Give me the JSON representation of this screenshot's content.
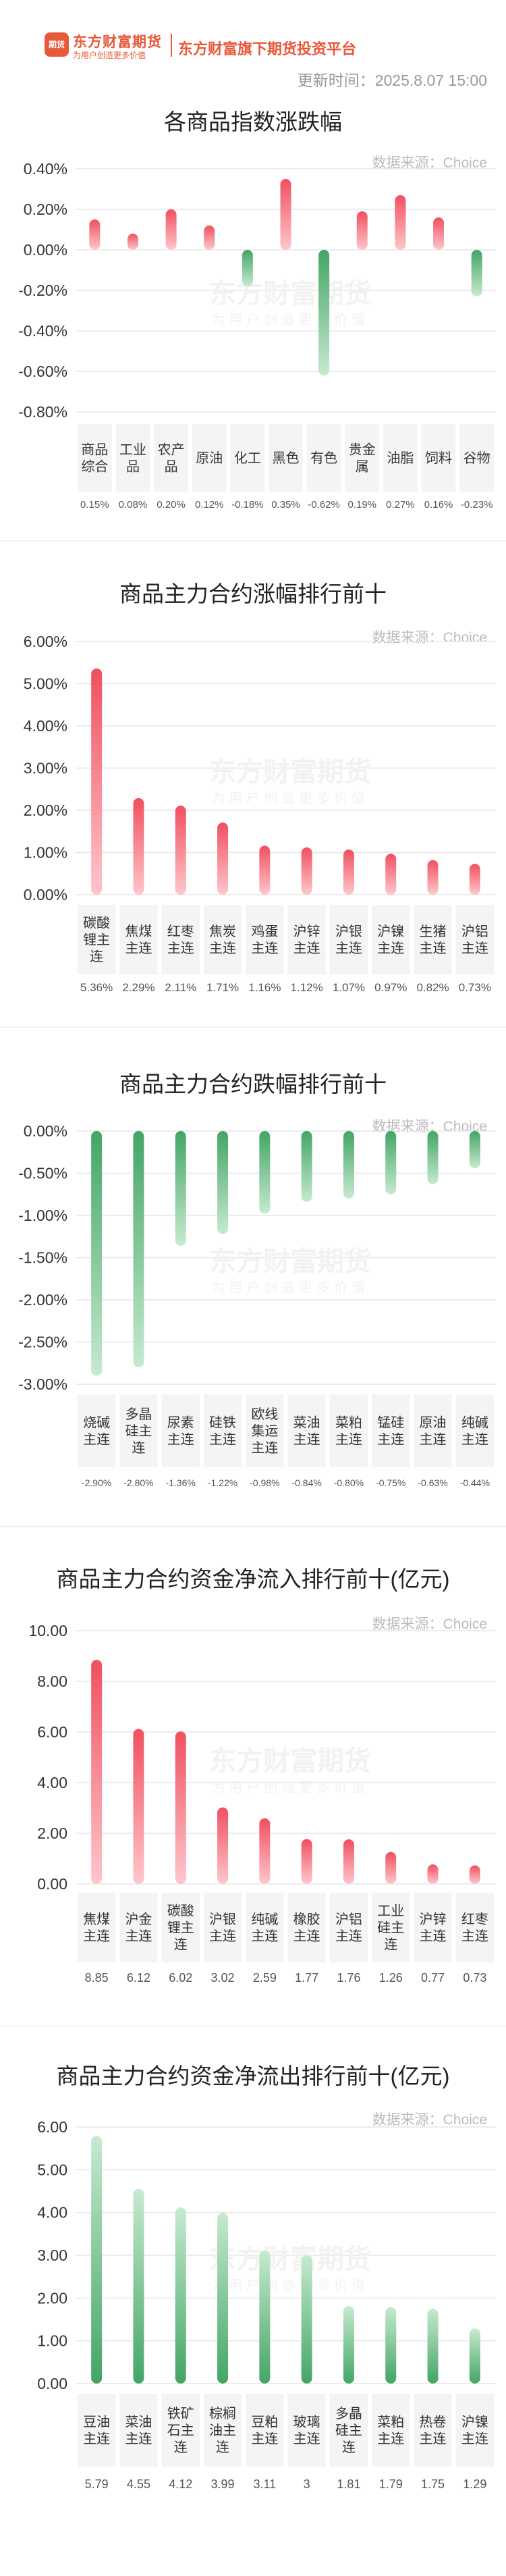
{
  "header": {
    "logo_text": "东方财富期货",
    "slogan": "为用户创造更多价值",
    "platform": "东方财富旗下期货投资平台",
    "logo_mark": "期货",
    "update_time": "更新时间：2025.8.07 15:00"
  },
  "watermark": {
    "main": "东方财富期货",
    "sub": "为用户创造更多价值"
  },
  "colors": {
    "up": "#f0505f",
    "down": "#4aaa68",
    "grid": "#e6e6e6",
    "label_bg": "#f4f4f4"
  },
  "chart_data": [
    {
      "id": "index-change",
      "type": "bar",
      "title": "各商品指数涨跌幅",
      "source": "数据来源：Choice",
      "categories": [
        "商品综合",
        "工业品",
        "农产品",
        "原油",
        "化工",
        "黑色",
        "有色",
        "贵金属",
        "油脂",
        "饲料",
        "谷物"
      ],
      "values": [
        0.15,
        0.08,
        0.2,
        0.12,
        -0.18,
        0.35,
        -0.62,
        0.19,
        0.27,
        0.16,
        -0.23
      ],
      "value_labels": [
        "0.15%",
        "0.08%",
        "0.20%",
        "0.12%",
        "-0.18%",
        "0.35%",
        "-0.62%",
        "0.19%",
        "0.27%",
        "0.16%",
        "-0.23%"
      ],
      "yticks": [
        "0.40%",
        "0.20%",
        "0.00%",
        "-0.20%",
        "-0.40%",
        "-0.60%",
        "-0.80%"
      ],
      "ylim": [
        -0.8,
        0.4
      ],
      "color_mode": "sign"
    },
    {
      "id": "top-gainers",
      "type": "bar",
      "title": "商品主力合约涨幅排行前十",
      "source": "数据来源：Choice",
      "categories": [
        "碳酸锂主连",
        "焦煤主连",
        "红枣主连",
        "焦炭主连",
        "鸡蛋主连",
        "沪锌主连",
        "沪银主连",
        "沪镍主连",
        "生猪主连",
        "沪铝主连"
      ],
      "values": [
        5.36,
        2.29,
        2.11,
        1.71,
        1.16,
        1.12,
        1.07,
        0.97,
        0.82,
        0.73
      ],
      "value_labels": [
        "5.36%",
        "2.29%",
        "2.11%",
        "1.71%",
        "1.16%",
        "1.12%",
        "1.07%",
        "0.97%",
        "0.82%",
        "0.73%"
      ],
      "yticks": [
        "6.00%",
        "5.00%",
        "4.00%",
        "3.00%",
        "2.00%",
        "1.00%",
        "0.00%"
      ],
      "ylim": [
        0,
        6
      ],
      "color_mode": "up"
    },
    {
      "id": "top-losers",
      "type": "bar",
      "title": "商品主力合约跌幅排行前十",
      "source": "数据来源：Choice",
      "categories": [
        "烧碱主连",
        "多晶硅主连",
        "尿素主连",
        "硅铁主连",
        "欧线集运主连",
        "菜油主连",
        "菜粕主连",
        "锰硅主连",
        "原油主连",
        "纯碱主连"
      ],
      "values": [
        -2.9,
        -2.8,
        -1.36,
        -1.22,
        -0.98,
        -0.84,
        -0.8,
        -0.75,
        -0.63,
        -0.44
      ],
      "value_labels": [
        "-2.90%",
        "-2.80%",
        "-1.36%",
        "-1.22%",
        "-0.98%",
        "-0.84%",
        "-0.80%",
        "-0.75%",
        "-0.63%",
        "-0.44%"
      ],
      "yticks": [
        "0.00%",
        "-0.50%",
        "-1.00%",
        "-1.50%",
        "-2.00%",
        "-2.50%",
        "-3.00%"
      ],
      "ylim": [
        -3,
        0
      ],
      "color_mode": "down"
    },
    {
      "id": "net-inflow",
      "type": "bar",
      "title": "商品主力合约资金净流入排行前十(亿元)",
      "source": "数据来源：Choice",
      "categories": [
        "焦煤主连",
        "沪金主连",
        "碳酸锂主连",
        "沪银主连",
        "纯碱主连",
        "橡胶主连",
        "沪铝主连",
        "工业硅主连",
        "沪锌主连",
        "红枣主连"
      ],
      "values": [
        8.85,
        6.12,
        6.02,
        3.02,
        2.59,
        1.77,
        1.76,
        1.26,
        0.77,
        0.73
      ],
      "value_labels": [
        "8.85",
        "6.12",
        "6.02",
        "3.02",
        "2.59",
        "1.77",
        "1.76",
        "1.26",
        "0.77",
        "0.73"
      ],
      "yticks": [
        "10.00",
        "8.00",
        "6.00",
        "4.00",
        "2.00",
        "0.00"
      ],
      "ylim": [
        0,
        10
      ],
      "color_mode": "up"
    },
    {
      "id": "net-outflow",
      "type": "bar",
      "title": "商品主力合约资金净流出排行前十(亿元)",
      "source": "数据来源：Choice",
      "categories": [
        "豆油主连",
        "菜油主连",
        "铁矿石主连",
        "棕榈油主连",
        "豆粕主连",
        "玻璃主连",
        "多晶硅主连",
        "菜粕主连",
        "热卷主连",
        "沪镍主连"
      ],
      "values": [
        5.79,
        4.55,
        4.12,
        3.99,
        3.11,
        3,
        1.81,
        1.79,
        1.75,
        1.29
      ],
      "value_labels": [
        "5.79",
        "4.55",
        "4.12",
        "3.99",
        "3.11",
        "3",
        "1.81",
        "1.79",
        "1.75",
        "1.29"
      ],
      "yticks": [
        "6.00",
        "5.00",
        "4.00",
        "3.00",
        "2.00",
        "1.00",
        "0.00"
      ],
      "ylim": [
        0,
        6
      ],
      "color_mode": "down"
    }
  ]
}
